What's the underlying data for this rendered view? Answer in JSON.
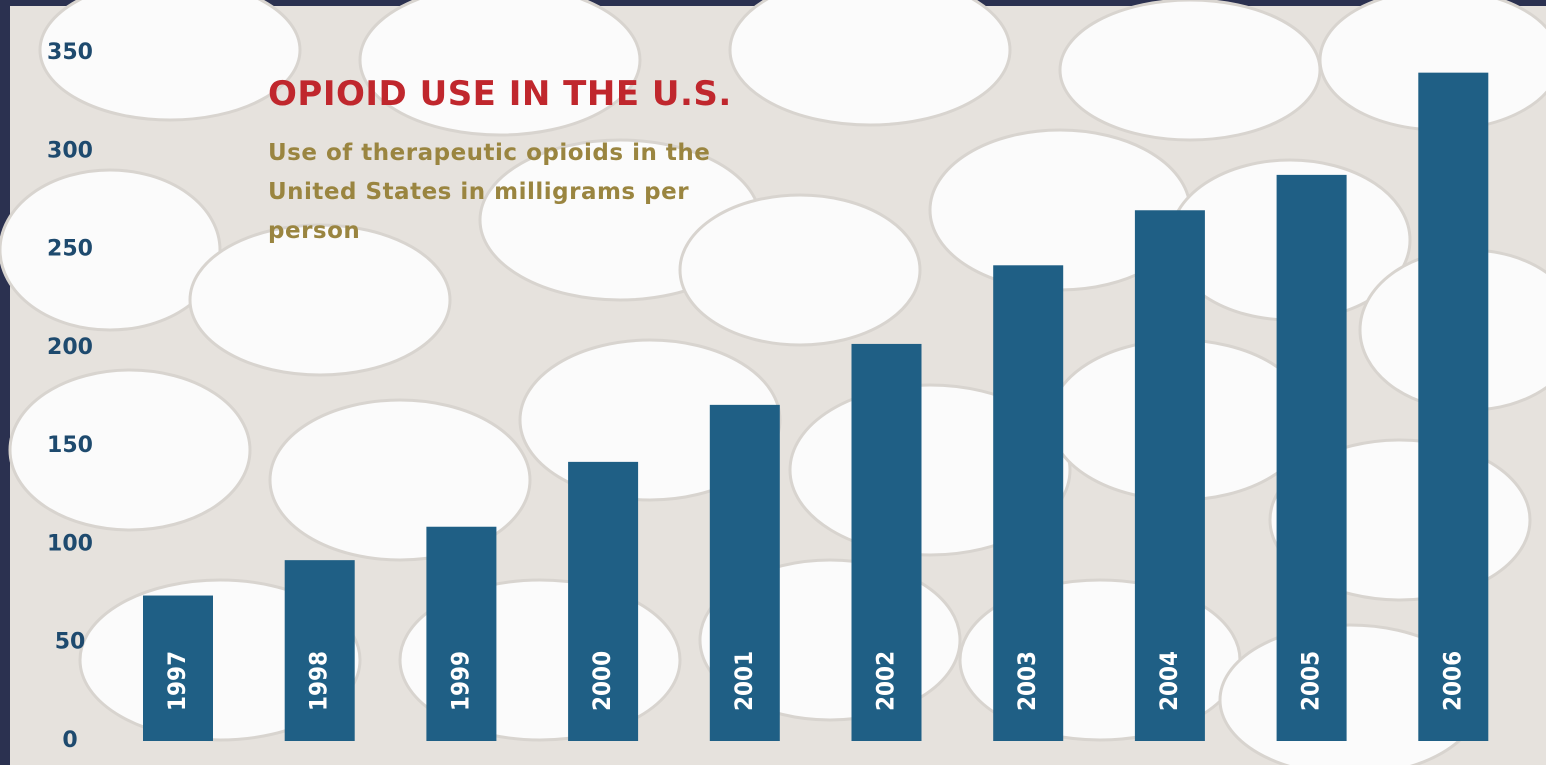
{
  "chart_data": {
    "type": "bar",
    "title": "OPIOID USE IN THE U.S.",
    "subtitle": "Use of therapeutic opioids in the United States in milligrams per person",
    "categories": [
      "1997",
      "1998",
      "1999",
      "2000",
      "2001",
      "2002",
      "2003",
      "2004",
      "2005",
      "2006"
    ],
    "values": [
      74,
      92,
      109,
      142,
      171,
      202,
      242,
      270,
      288,
      340
    ],
    "color": "#1f5f85",
    "ylim": [
      0,
      350
    ],
    "yticks": [
      0,
      50,
      100,
      150,
      200,
      250,
      300,
      350
    ],
    "grid": false
  }
}
